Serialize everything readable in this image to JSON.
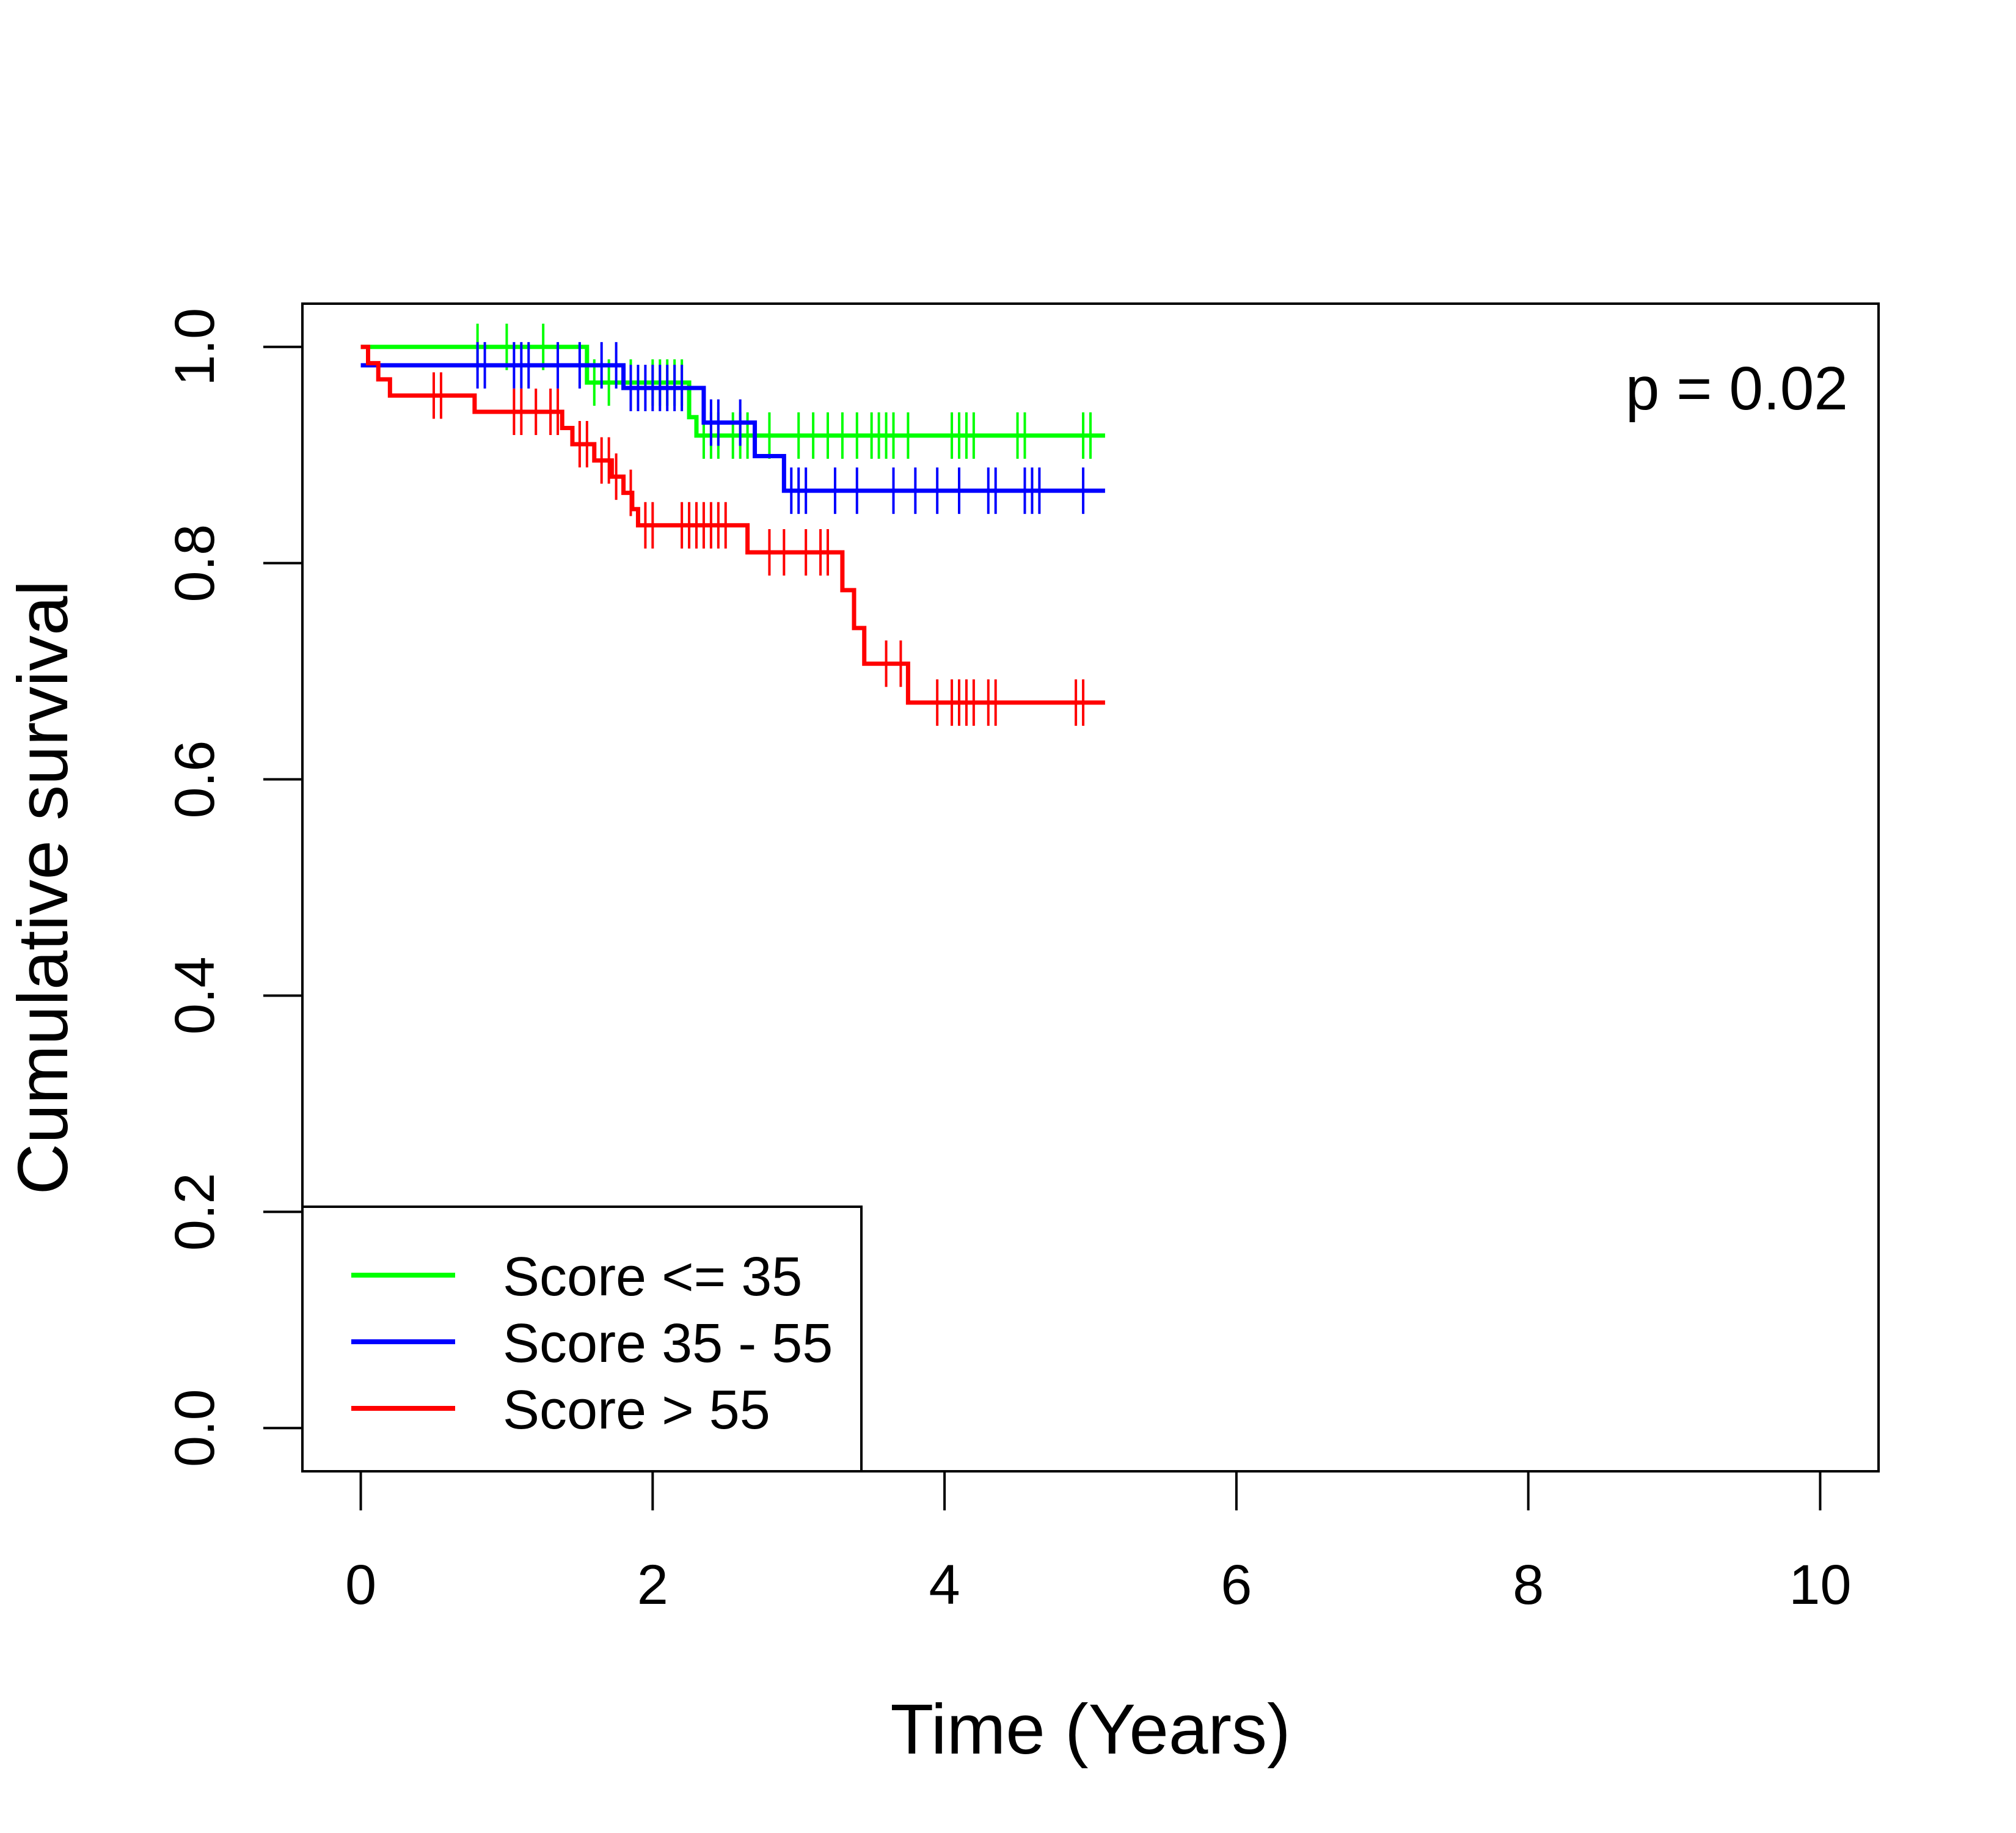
{
  "chart_data": {
    "type": "line",
    "subtype": "kaplan-meier",
    "xlabel": "Time (Years)",
    "ylabel": "Cumulative survival",
    "xlim": [
      -0.4,
      10.4
    ],
    "ylim": [
      -0.04,
      1.04
    ],
    "xticks": [
      0,
      2,
      4,
      6,
      8,
      10
    ],
    "yticks": [
      0.0,
      0.2,
      0.4,
      0.6,
      0.8,
      1.0
    ],
    "xtick_labels": [
      "0",
      "2",
      "4",
      "6",
      "8",
      "10"
    ],
    "ytick_labels": [
      "0.0",
      "0.2",
      "0.4",
      "0.6",
      "0.8",
      "1.0"
    ],
    "annotation": "p = 0.02",
    "legend_position": "bottom-left",
    "grid": false,
    "series": [
      {
        "name": "Score <= 35",
        "color": "#00ff00",
        "steps": [
          [
            0.0,
            1.0
          ],
          [
            1.55,
            0.967
          ],
          [
            2.25,
            0.935
          ],
          [
            2.3,
            0.918
          ],
          [
            5.1,
            0.918
          ]
        ],
        "censor_times": [
          0.8,
          1.0,
          1.25,
          1.6,
          1.7,
          1.85,
          2.0,
          2.05,
          2.1,
          2.15,
          2.2,
          2.35,
          2.4,
          2.45,
          2.55,
          2.6,
          2.65,
          2.8,
          3.0,
          3.1,
          3.2,
          3.3,
          3.4,
          3.5,
          3.55,
          3.6,
          3.65,
          3.75,
          4.05,
          4.1,
          4.15,
          4.2,
          4.5,
          4.55,
          4.95,
          5.0
        ]
      },
      {
        "name": "Score 35 - 55",
        "color": "#0000ff",
        "steps": [
          [
            0.0,
            0.983
          ],
          [
            1.8,
            0.962
          ],
          [
            2.35,
            0.93
          ],
          [
            2.7,
            0.899
          ],
          [
            2.9,
            0.867
          ],
          [
            5.1,
            0.867
          ]
        ],
        "censor_times": [
          0.8,
          0.85,
          1.05,
          1.1,
          1.15,
          1.35,
          1.5,
          1.65,
          1.75,
          1.85,
          1.9,
          1.95,
          2.0,
          2.05,
          2.1,
          2.15,
          2.2,
          2.4,
          2.45,
          2.6,
          2.95,
          3.0,
          3.05,
          3.25,
          3.4,
          3.65,
          3.8,
          3.95,
          4.1,
          4.3,
          4.35,
          4.55,
          4.6,
          4.65,
          4.95
        ]
      },
      {
        "name": "Score > 55",
        "color": "#ff0000",
        "steps": [
          [
            0.0,
            1.0
          ],
          [
            0.05,
            0.985
          ],
          [
            0.12,
            0.97
          ],
          [
            0.2,
            0.955
          ],
          [
            0.78,
            0.94
          ],
          [
            1.38,
            0.925
          ],
          [
            1.45,
            0.91
          ],
          [
            1.6,
            0.895
          ],
          [
            1.72,
            0.88
          ],
          [
            1.8,
            0.865
          ],
          [
            1.86,
            0.85
          ],
          [
            1.9,
            0.835
          ],
          [
            2.65,
            0.81
          ],
          [
            3.3,
            0.775
          ],
          [
            3.38,
            0.74
          ],
          [
            3.45,
            0.707
          ],
          [
            3.75,
            0.671
          ],
          [
            5.1,
            0.671
          ]
        ],
        "censor_times": [
          0.5,
          0.55,
          1.05,
          1.1,
          1.2,
          1.3,
          1.35,
          1.5,
          1.55,
          1.65,
          1.7,
          1.75,
          1.85,
          1.95,
          2.0,
          2.2,
          2.25,
          2.3,
          2.35,
          2.4,
          2.45,
          2.5,
          2.8,
          2.9,
          3.05,
          3.15,
          3.2,
          3.6,
          3.7,
          3.95,
          4.05,
          4.1,
          4.15,
          4.2,
          4.3,
          4.35,
          4.9,
          4.95
        ]
      }
    ]
  }
}
